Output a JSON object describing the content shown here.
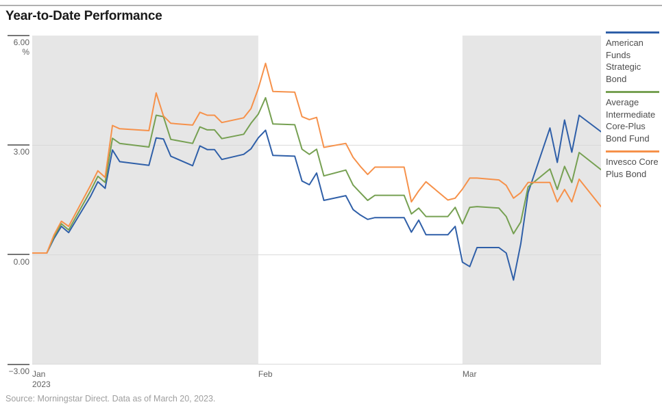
{
  "header": {
    "title": "Year-to-Date Performance"
  },
  "footer": {
    "source": "Source: Morningstar Direct. Data as of March 20, 2023."
  },
  "colors": {
    "blue": "#2f5fa8",
    "green": "#76a052",
    "orange": "#f6914a",
    "band": "#e6e6e6",
    "gridline": "#d9d9d9",
    "tick": "#757575",
    "axis_text": "#5f5f5f",
    "top_rule": "#b0b0b0",
    "legend_text": "#4d4d4d",
    "source_text": "#9e9e9e",
    "title_text": "#1a1a1a"
  },
  "y_axis": {
    "unit": "%",
    "min": -3,
    "max": 6,
    "ticks": [
      {
        "label": "6.00",
        "value": 6
      },
      {
        "label": "3.00",
        "value": 3
      },
      {
        "label": "0.00",
        "value": 0
      },
      {
        "label": "−3.00",
        "value": -3
      }
    ]
  },
  "x_axis": {
    "total_days": 78,
    "labels": [
      {
        "text": "Jan",
        "sub": "2023",
        "day": 0
      },
      {
        "text": "Feb",
        "sub": "",
        "day": 31
      },
      {
        "text": "Mar",
        "sub": "",
        "day": 59
      }
    ]
  },
  "bands": [
    {
      "start_day": 0,
      "end_day": 31,
      "shaded": true
    },
    {
      "start_day": 31,
      "end_day": 59,
      "shaded": false
    },
    {
      "start_day": 59,
      "end_day": 78,
      "shaded": true
    }
  ],
  "legend": [
    {
      "name": "American Funds Strategic Bond",
      "color_key": "blue"
    },
    {
      "name": "Average Intermediate Core-Plus Bond Fund",
      "color_key": "green"
    },
    {
      "name": "Invesco Core Plus Bond",
      "color_key": "orange"
    }
  ],
  "chart_data": {
    "type": "line",
    "title": "Year-to-Date Performance",
    "unit": "%",
    "ylim": [
      -3,
      6
    ],
    "gridlines": [
      3,
      0
    ],
    "legend_position": "right",
    "x_dates": [
      "Jan 1",
      "Jan 3",
      "Jan 4",
      "Jan 5",
      "Jan 6",
      "Jan 9",
      "Jan 10",
      "Jan 11",
      "Jan 12",
      "Jan 13",
      "Jan 17",
      "Jan 18",
      "Jan 19",
      "Jan 20",
      "Jan 23",
      "Jan 24",
      "Jan 25",
      "Jan 26",
      "Jan 27",
      "Jan 30",
      "Jan 31",
      "Feb 1",
      "Feb 2",
      "Feb 3",
      "Feb 6",
      "Feb 7",
      "Feb 8",
      "Feb 9",
      "Feb 10",
      "Feb 13",
      "Feb 14",
      "Feb 15",
      "Feb 16",
      "Feb 17",
      "Feb 21",
      "Feb 22",
      "Feb 23",
      "Feb 24",
      "Feb 27",
      "Feb 28",
      "Mar 1",
      "Mar 2",
      "Mar 3",
      "Mar 6",
      "Mar 7",
      "Mar 8",
      "Mar 9",
      "Mar 10",
      "Mar 13",
      "Mar 14",
      "Mar 15",
      "Mar 16",
      "Mar 17",
      "Mar 20"
    ],
    "series": [
      {
        "name": "American Funds Strategic Bond",
        "color_key": "blue",
        "values": [
          0.05,
          0.05,
          0.45,
          0.78,
          0.61,
          1.6,
          2.0,
          1.82,
          2.87,
          2.55,
          2.45,
          3.2,
          3.17,
          2.7,
          2.44,
          2.98,
          2.88,
          2.88,
          2.61,
          2.75,
          2.9,
          3.2,
          3.41,
          2.72,
          2.7,
          2.02,
          1.92,
          2.24,
          1.49,
          1.62,
          1.24,
          1.09,
          0.97,
          1.02,
          1.02,
          0.62,
          0.95,
          0.55,
          0.55,
          0.78,
          -0.2,
          -0.32,
          0.2,
          0.2,
          0.05,
          -0.69,
          0.3,
          1.7,
          3.47,
          2.53,
          3.69,
          2.81,
          3.82,
          3.37
        ]
      },
      {
        "name": "Average Intermediate Core-Plus Bond Fund",
        "color_key": "green",
        "values": [
          0.05,
          0.05,
          0.5,
          0.85,
          0.68,
          1.75,
          2.15,
          1.98,
          3.19,
          3.05,
          2.95,
          3.82,
          3.78,
          3.16,
          3.05,
          3.5,
          3.42,
          3.42,
          3.18,
          3.3,
          3.6,
          3.85,
          4.3,
          3.58,
          3.56,
          2.89,
          2.75,
          2.89,
          2.16,
          2.32,
          1.91,
          1.7,
          1.49,
          1.63,
          1.63,
          1.12,
          1.28,
          1.05,
          1.05,
          1.3,
          0.85,
          1.3,
          1.32,
          1.28,
          1.05,
          0.58,
          0.9,
          1.86,
          2.35,
          1.79,
          2.42,
          1.98,
          2.8,
          2.33
        ]
      },
      {
        "name": "Invesco Core Plus Bond",
        "color_key": "orange",
        "values": [
          0.05,
          0.05,
          0.55,
          0.92,
          0.78,
          1.9,
          2.3,
          2.12,
          3.54,
          3.45,
          3.4,
          4.43,
          3.8,
          3.6,
          3.55,
          3.9,
          3.82,
          3.82,
          3.62,
          3.75,
          4.0,
          4.55,
          5.24,
          4.47,
          4.45,
          3.78,
          3.7,
          3.76,
          2.94,
          3.05,
          2.67,
          2.42,
          2.2,
          2.4,
          2.4,
          1.45,
          1.75,
          2.0,
          1.5,
          1.55,
          1.8,
          2.1,
          2.1,
          2.05,
          1.9,
          1.55,
          1.7,
          1.98,
          1.98,
          1.45,
          1.79,
          1.45,
          2.07,
          1.32
        ]
      }
    ]
  }
}
